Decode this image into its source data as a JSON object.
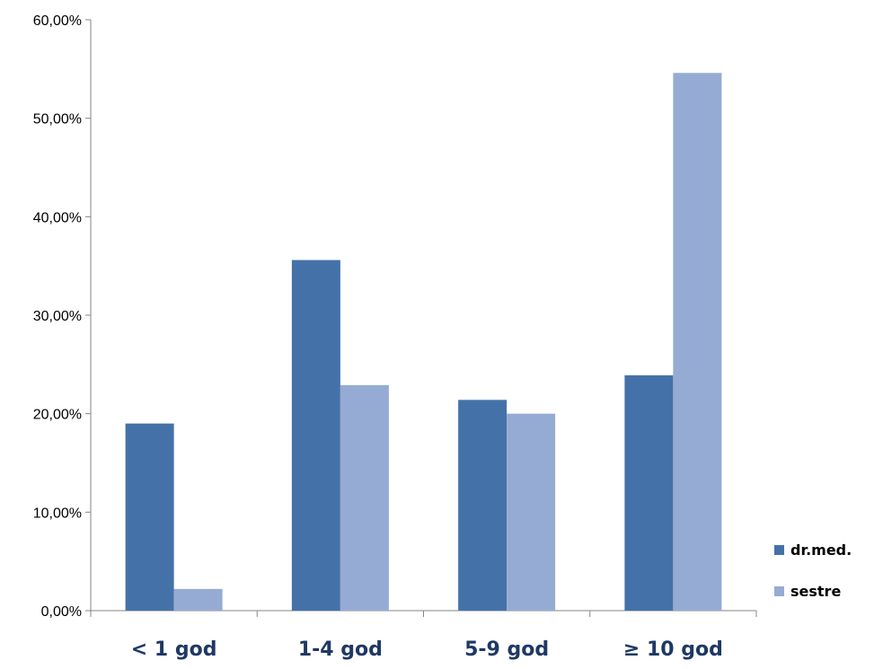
{
  "chart_data": {
    "type": "bar",
    "title": "",
    "xlabel": "",
    "ylabel": "",
    "categories": [
      "< 1 god",
      "1-4 god",
      "5-9 god",
      "≥ 10 god"
    ],
    "series": [
      {
        "name": "dr.med.",
        "values": [
          19.0,
          35.6,
          21.4,
          23.9
        ],
        "color": "#4472a8"
      },
      {
        "name": "sestre",
        "values": [
          2.2,
          22.9,
          20.0,
          54.6
        ],
        "color": "#95abd3"
      }
    ],
    "ylim": [
      0,
      60
    ],
    "yticks": [
      "0,00%",
      "10,00%",
      "20,00%",
      "30,00%",
      "40,00%",
      "50,00%",
      "60,00%"
    ],
    "grid": false,
    "legend_position": "right"
  }
}
